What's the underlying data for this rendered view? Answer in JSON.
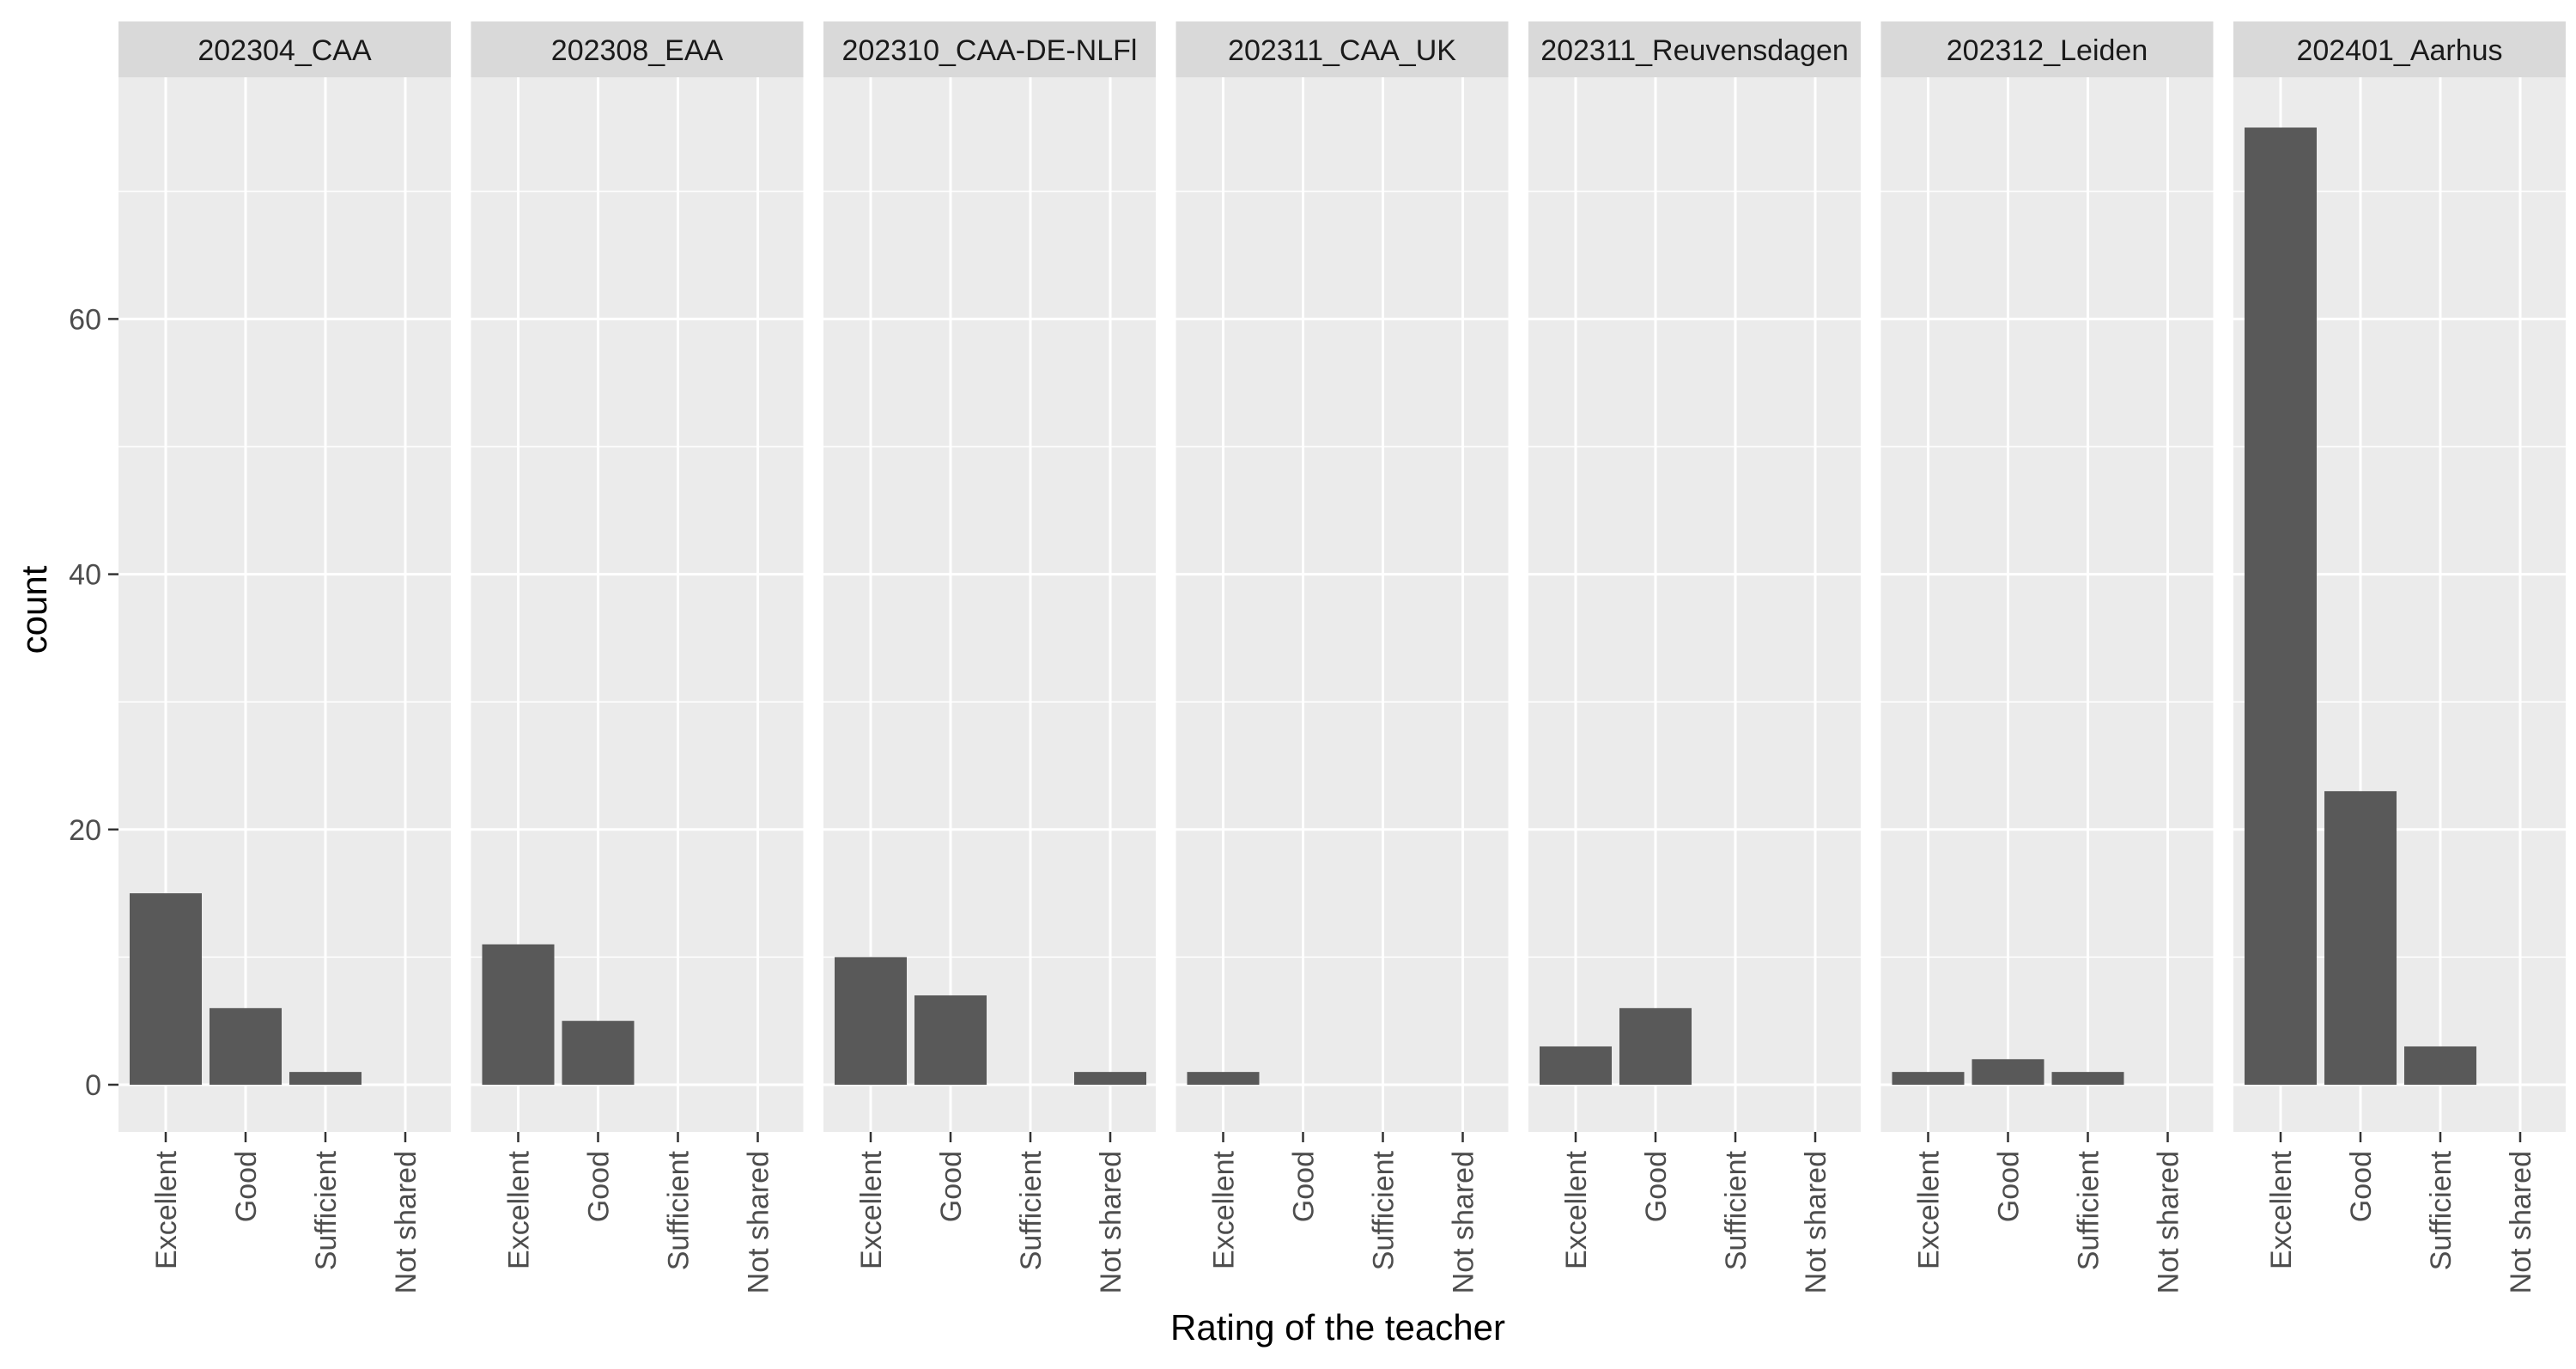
{
  "chart_data": {
    "type": "bar",
    "facet_by": "event",
    "categories": [
      "Excellent",
      "Good",
      "Sufficient",
      "Not shared"
    ],
    "xlabel": "Rating of the teacher",
    "ylabel": "count",
    "ylim": [
      0,
      79
    ],
    "yticks": [
      0,
      20,
      40,
      60
    ],
    "grid": true,
    "bar_color": "#595959",
    "panel_background": "#ebebeb",
    "strip_background": "#d9d9d9",
    "grid_color": "#ffffff",
    "facets": [
      {
        "label": "202304_CAA",
        "values": [
          15,
          6,
          1,
          0
        ]
      },
      {
        "label": "202308_EAA",
        "values": [
          11,
          5,
          0,
          0
        ]
      },
      {
        "label": "202310_CAA-DE-NLFl",
        "values": [
          10,
          7,
          0,
          1
        ]
      },
      {
        "label": "202311_CAA_UK",
        "values": [
          1,
          0,
          0,
          0
        ]
      },
      {
        "label": "202311_Reuvensdagen",
        "values": [
          3,
          6,
          0,
          0
        ]
      },
      {
        "label": "202312_Leiden",
        "values": [
          1,
          2,
          1,
          0
        ]
      },
      {
        "label": "202401_Aarhus",
        "values": [
          75,
          23,
          3,
          0
        ]
      }
    ]
  }
}
